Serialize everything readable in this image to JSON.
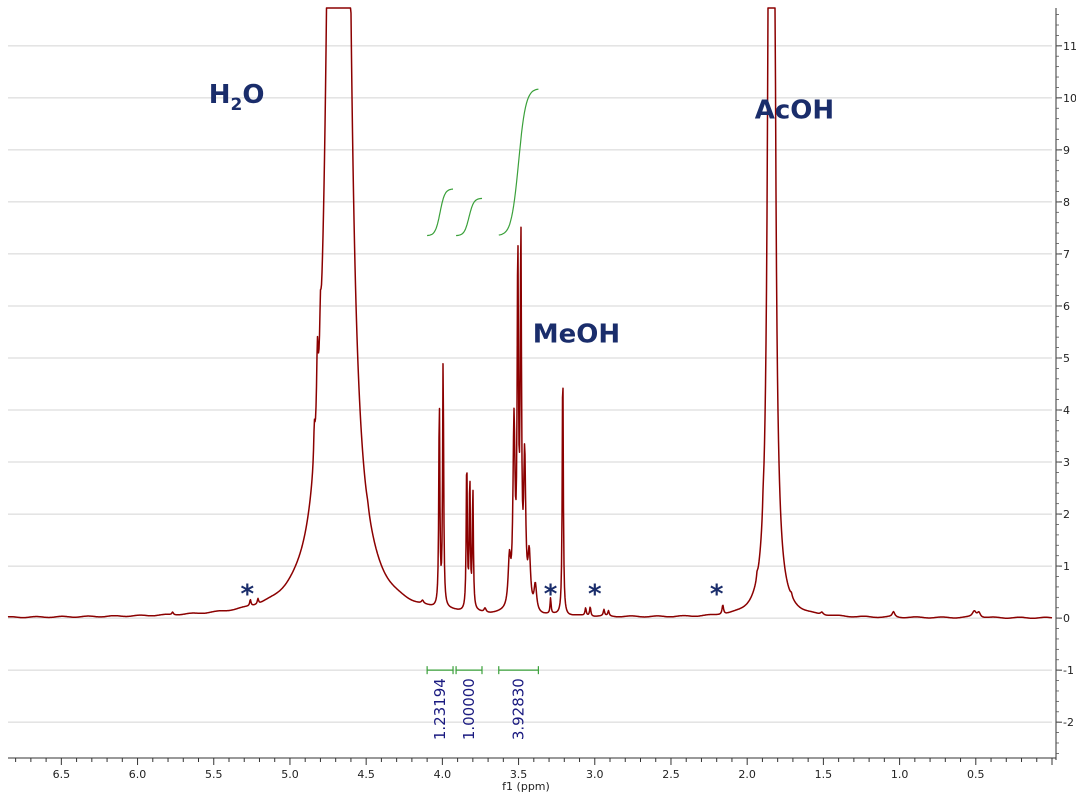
{
  "chart_data": {
    "type": "line",
    "xlabel": "f1 (ppm)",
    "ylabel": "",
    "x_reversed": true,
    "xlim": [
      6.85,
      0.0
    ],
    "ylim": [
      -2.65,
      11.65
    ],
    "x_ticks": [
      "6.5",
      "6.0",
      "5.5",
      "5.0",
      "4.5",
      "4.0",
      "3.5",
      "3.0",
      "2.5",
      "2.0",
      "1.5",
      "1.0",
      "0.5"
    ],
    "y_ticks": [
      "-2",
      "-1",
      "0",
      "1",
      "2",
      "3",
      "4",
      "5",
      "6",
      "7",
      "8",
      "9",
      "10",
      "11"
    ],
    "grid": "horizontal",
    "colors": {
      "spectrum": "#8b0000",
      "integral": "#3aa03a",
      "annotation": "#1a2d6b",
      "integral_label": "#1a1a80"
    },
    "series": [
      {
        "peaks": [
          {
            "ppm": 4.68,
            "height": 200,
            "width": 0.02
          },
          {
            "ppm": 4.82,
            "height": 1.3,
            "width": 0.006
          },
          {
            "ppm": 4.8,
            "height": 0.75,
            "width": 0.005
          },
          {
            "ppm": 4.84,
            "height": 0.6,
            "width": 0.005
          },
          {
            "ppm": 4.02,
            "height": 4.05,
            "width": 0.004
          },
          {
            "ppm": 3.995,
            "height": 4.8,
            "width": 0.004
          },
          {
            "ppm": 3.84,
            "height": 2.95,
            "width": 0.004
          },
          {
            "ppm": 3.82,
            "height": 2.55,
            "width": 0.004
          },
          {
            "ppm": 3.8,
            "height": 2.35,
            "width": 0.004
          },
          {
            "ppm": 3.53,
            "height": 3.5,
            "width": 0.008
          },
          {
            "ppm": 3.505,
            "height": 6.6,
            "width": 0.005
          },
          {
            "ppm": 3.485,
            "height": 6.9,
            "width": 0.005
          },
          {
            "ppm": 3.46,
            "height": 2.8,
            "width": 0.008
          },
          {
            "ppm": 3.43,
            "height": 1.0,
            "width": 0.01
          },
          {
            "ppm": 3.39,
            "height": 0.5,
            "width": 0.01
          },
          {
            "ppm": 3.56,
            "height": 0.9,
            "width": 0.01
          },
          {
            "ppm": 3.21,
            "height": 5.0,
            "width": 0.004
          },
          {
            "ppm": 3.29,
            "height": 0.3,
            "width": 0.004
          },
          {
            "ppm": 3.06,
            "height": 0.15,
            "width": 0.005
          },
          {
            "ppm": 3.03,
            "height": 0.18,
            "width": 0.005
          },
          {
            "ppm": 2.94,
            "height": 0.12,
            "width": 0.005
          },
          {
            "ppm": 2.91,
            "height": 0.1,
            "width": 0.005
          },
          {
            "ppm": 5.26,
            "height": 0.12,
            "width": 0.005
          },
          {
            "ppm": 5.21,
            "height": 0.1,
            "width": 0.005
          },
          {
            "ppm": 2.16,
            "height": 0.18,
            "width": 0.006
          },
          {
            "ppm": 1.935,
            "height": 0.1,
            "width": 0.004
          },
          {
            "ppm": 1.895,
            "height": 0.2,
            "width": 0.004
          },
          {
            "ppm": 1.84,
            "height": 200,
            "width": 0.006
          },
          {
            "ppm": 1.71,
            "height": 0.06,
            "width": 0.006
          },
          {
            "ppm": 1.51,
            "height": 0.05,
            "width": 0.01
          },
          {
            "ppm": 1.04,
            "height": 0.1,
            "width": 0.01
          },
          {
            "ppm": 0.51,
            "height": 0.12,
            "width": 0.015
          },
          {
            "ppm": 0.48,
            "height": 0.1,
            "width": 0.012
          },
          {
            "ppm": 5.77,
            "height": 0.05,
            "width": 0.006
          },
          {
            "ppm": 4.49,
            "height": 0.06,
            "width": 0.008
          },
          {
            "ppm": 4.13,
            "height": 0.06,
            "width": 0.008
          },
          {
            "ppm": 3.72,
            "height": 0.08,
            "width": 0.008
          }
        ]
      }
    ],
    "integrals": [
      {
        "from": 4.1,
        "to": 3.93,
        "value": "1.23194",
        "y_start": 7.35,
        "y_end": 8.25
      },
      {
        "from": 3.91,
        "to": 3.74,
        "value": "1.00000",
        "y_start": 7.35,
        "y_end": 8.07
      },
      {
        "from": 3.63,
        "to": 3.37,
        "value": "3.92830",
        "y_start": 7.35,
        "y_end": 10.18
      }
    ],
    "annotations": [
      {
        "text": "H",
        "sub": "2",
        "after": "O",
        "ppm": 5.35,
        "y": 9.9
      },
      {
        "text": "AcOH",
        "ppm": 1.69,
        "y": 9.6
      },
      {
        "text": "MeOH",
        "ppm": 3.12,
        "y": 5.3
      },
      {
        "text": "*",
        "ppm": 5.28,
        "y": 0.3
      },
      {
        "text": "*",
        "ppm": 3.29,
        "y": 0.3
      },
      {
        "text": "*",
        "ppm": 3.0,
        "y": 0.3
      },
      {
        "text": "*",
        "ppm": 2.2,
        "y": 0.3
      }
    ]
  }
}
